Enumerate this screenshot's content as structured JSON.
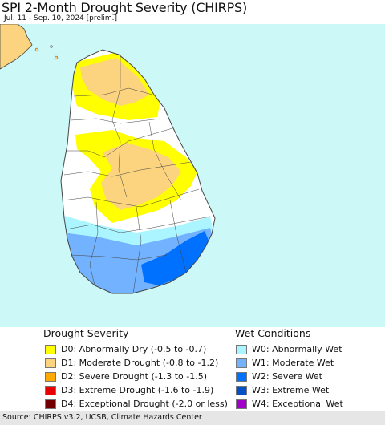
{
  "title": "SPI 2-Month Drought Severity (CHIRPS)",
  "subtitle": "Jul. 11 - Sep. 10, 2024 [prelim.]",
  "legend_drought": {
    "heading": "Drought Severity",
    "items": [
      {
        "label": "D0: Abnormally Dry (-0.5 to -0.7)",
        "color": "#ffff00"
      },
      {
        "label": "D1: Moderate Drought (-0.8 to -1.2)",
        "color": "#fcd37f"
      },
      {
        "label": "D2: Severe Drought (-1.3 to -1.5)",
        "color": "#ffaa00"
      },
      {
        "label": "D3: Extreme Drought (-1.6 to -1.9)",
        "color": "#e60000"
      },
      {
        "label": "D4: Exceptional Drought (-2.0 or less)",
        "color": "#730000"
      }
    ]
  },
  "legend_wet": {
    "heading": "Wet Conditions",
    "items": [
      {
        "label": "W0: Abnormally Wet",
        "color": "#aaf5ff"
      },
      {
        "label": "W1: Moderate Wet",
        "color": "#73b2ff"
      },
      {
        "label": "W2: Severe Wet",
        "color": "#0070ff"
      },
      {
        "label": "W3: Extreme Wet",
        "color": "#0050c8"
      },
      {
        "label": "W4: Exceptional Wet",
        "color": "#a000c8"
      }
    ]
  },
  "footer": "Source: CHIRPS v3.2, UCSB, Climate Hazards Center",
  "map_colors": {
    "ocean": "#cdf8f8",
    "land": "#ffffff",
    "boundary": "#444444",
    "d0": "#ffff00",
    "d1": "#fcd37f",
    "w0": "#aaf5ff",
    "w1": "#73b2ff",
    "w2": "#0070ff"
  }
}
